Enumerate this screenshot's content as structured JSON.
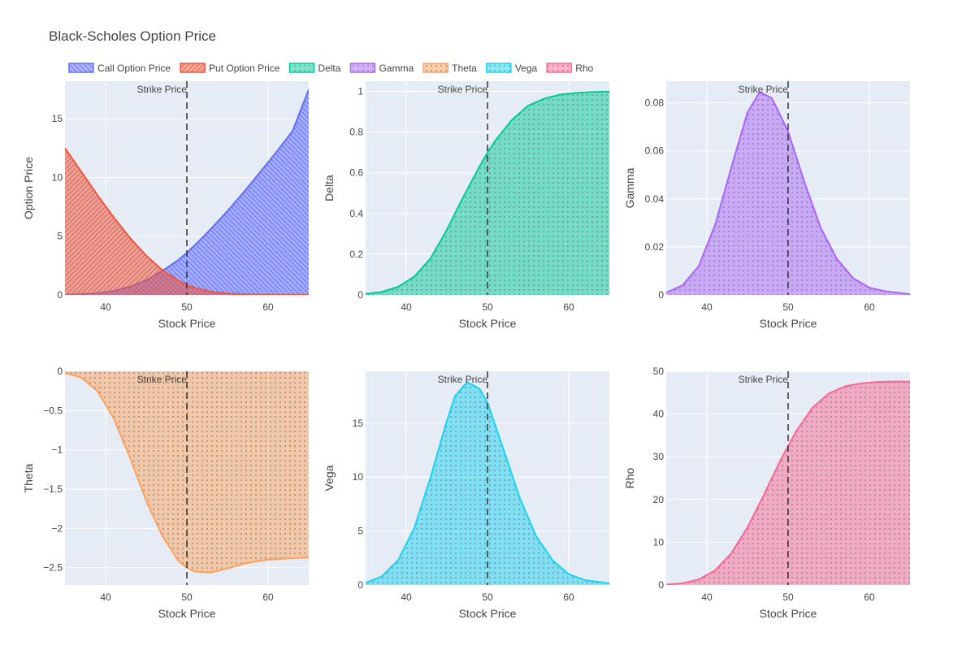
{
  "chart_data": {
    "title": "Black-Scholes Option Price",
    "type": "area",
    "legend_position": "top",
    "annotation_text": "Strike Price",
    "strike": 50,
    "legend": [
      {
        "name": "Call Option Price",
        "color": "#636efa",
        "pattern": "hatch"
      },
      {
        "name": "Put Option Price",
        "color": "#ef553b",
        "pattern": "hatch-reverse"
      },
      {
        "name": "Delta",
        "color": "#00cc96",
        "pattern": "dots"
      },
      {
        "name": "Gamma",
        "color": "#ab63fa",
        "pattern": "dots"
      },
      {
        "name": "Theta",
        "color": "#ffa15a",
        "pattern": "dots"
      },
      {
        "name": "Vega",
        "color": "#19d3f3",
        "pattern": "dots"
      },
      {
        "name": "Rho",
        "color": "#ff6692",
        "pattern": "dots"
      }
    ],
    "panels": [
      {
        "id": "price",
        "xlabel": "Stock Price",
        "ylabel": "Option Price",
        "xlim": [
          35,
          65
        ],
        "ylim": [
          0,
          18.2
        ],
        "xticks": [
          {
            "v": 40,
            "label": "40"
          },
          {
            "v": 50,
            "label": "50"
          },
          {
            "v": 60,
            "label": "60"
          }
        ],
        "yticks": [
          {
            "v": 0,
            "label": "0"
          },
          {
            "v": 5,
            "label": "5"
          },
          {
            "v": 10,
            "label": "10"
          },
          {
            "v": 15,
            "label": "15"
          }
        ],
        "series": [
          {
            "name": "Call Option Price",
            "color": "#636efa",
            "pattern": "hatch",
            "x": [
              35,
              37,
              39,
              41,
              43,
              45,
              47,
              49,
              50,
              51,
              53,
              55,
              57,
              59,
              61,
              63,
              65
            ],
            "y": [
              0.02,
              0.06,
              0.15,
              0.34,
              0.7,
              1.25,
              2.05,
              3.0,
              3.6,
              4.25,
              5.65,
              7.15,
              8.75,
              10.45,
              12.15,
              13.95,
              17.5
            ]
          },
          {
            "name": "Put Option Price",
            "color": "#ef553b",
            "pattern": "hatch-reverse",
            "x": [
              35,
              37,
              39,
              41,
              43,
              45,
              47,
              49,
              50,
              51,
              53,
              55,
              57,
              59,
              61,
              63,
              65
            ],
            "y": [
              12.5,
              10.5,
              8.5,
              6.6,
              4.85,
              3.35,
              2.1,
              1.2,
              0.85,
              0.6,
              0.27,
              0.11,
              0.05,
              0.02,
              0.01,
              0.0,
              0.0
            ]
          }
        ]
      },
      {
        "id": "delta",
        "xlabel": "Stock Price",
        "ylabel": "Delta",
        "xlim": [
          35,
          65
        ],
        "ylim": [
          0,
          1.05
        ],
        "xticks": [
          {
            "v": 40,
            "label": "40"
          },
          {
            "v": 50,
            "label": "50"
          },
          {
            "v": 60,
            "label": "60"
          }
        ],
        "yticks": [
          {
            "v": 0,
            "label": "0"
          },
          {
            "v": 0.2,
            "label": "0.2"
          },
          {
            "v": 0.4,
            "label": "0.4"
          },
          {
            "v": 0.6,
            "label": "0.6"
          },
          {
            "v": 0.8,
            "label": "0.8"
          },
          {
            "v": 1,
            "label": "1"
          }
        ],
        "series": [
          {
            "name": "Delta",
            "color": "#00cc96",
            "pattern": "dots",
            "x": [
              35,
              37,
              39,
              41,
              43,
              45,
              47,
              49,
              50,
              51,
              53,
              55,
              57,
              59,
              61,
              63,
              65
            ],
            "y": [
              0.005,
              0.015,
              0.04,
              0.09,
              0.18,
              0.32,
              0.48,
              0.63,
              0.7,
              0.76,
              0.86,
              0.93,
              0.965,
              0.985,
              0.993,
              0.997,
              0.999
            ]
          }
        ]
      },
      {
        "id": "gamma",
        "xlabel": "Stock Price",
        "ylabel": "Gamma",
        "xlim": [
          35,
          65
        ],
        "ylim": [
          0,
          0.089
        ],
        "xticks": [
          {
            "v": 40,
            "label": "40"
          },
          {
            "v": 50,
            "label": "50"
          },
          {
            "v": 60,
            "label": "60"
          }
        ],
        "yticks": [
          {
            "v": 0,
            "label": "0"
          },
          {
            "v": 0.02,
            "label": "0.02"
          },
          {
            "v": 0.04,
            "label": "0.04"
          },
          {
            "v": 0.06,
            "label": "0.06"
          },
          {
            "v": 0.08,
            "label": "0.08"
          }
        ],
        "series": [
          {
            "name": "Gamma",
            "color": "#ab63fa",
            "pattern": "dots",
            "x": [
              35,
              37,
              39,
              41,
              43,
              45,
              46.5,
              48,
              50,
              52,
              54,
              56,
              58,
              60,
              62,
              65
            ],
            "y": [
              0.001,
              0.004,
              0.012,
              0.029,
              0.053,
              0.076,
              0.0845,
              0.082,
              0.068,
              0.047,
              0.028,
              0.015,
              0.007,
              0.003,
              0.0015,
              0.0003
            ]
          }
        ]
      },
      {
        "id": "theta",
        "xlabel": "Stock Price",
        "ylabel": "Theta",
        "xlim": [
          35,
          65
        ],
        "ylim": [
          -2.72,
          0
        ],
        "xticks": [
          {
            "v": 40,
            "label": "40"
          },
          {
            "v": 50,
            "label": "50"
          },
          {
            "v": 60,
            "label": "60"
          }
        ],
        "yticks": [
          {
            "v": 0,
            "label": "0"
          },
          {
            "v": -0.5,
            "label": "−0.5"
          },
          {
            "v": -1,
            "label": "−1"
          },
          {
            "v": -1.5,
            "label": "−1.5"
          },
          {
            "v": -2,
            "label": "−2"
          },
          {
            "v": -2.5,
            "label": "−2.5"
          }
        ],
        "series": [
          {
            "name": "Theta",
            "color": "#ffa15a",
            "pattern": "dots",
            "x": [
              35,
              37,
              39,
              41,
              43,
              45,
              47,
              49,
              50,
              51,
              53,
              55,
              57,
              59,
              61,
              63,
              65
            ],
            "y": [
              -0.02,
              -0.08,
              -0.25,
              -0.6,
              -1.1,
              -1.65,
              -2.1,
              -2.42,
              -2.5,
              -2.55,
              -2.56,
              -2.51,
              -2.45,
              -2.41,
              -2.39,
              -2.38,
              -2.37
            ]
          }
        ]
      },
      {
        "id": "vega",
        "xlabel": "Stock Price",
        "ylabel": "Vega",
        "xlim": [
          35,
          65
        ],
        "ylim": [
          0,
          19.8
        ],
        "xticks": [
          {
            "v": 40,
            "label": "40"
          },
          {
            "v": 50,
            "label": "50"
          },
          {
            "v": 60,
            "label": "60"
          }
        ],
        "yticks": [
          {
            "v": 0,
            "label": "0"
          },
          {
            "v": 5,
            "label": "5"
          },
          {
            "v": 10,
            "label": "10"
          },
          {
            "v": 15,
            "label": "15"
          }
        ],
        "series": [
          {
            "name": "Vega",
            "color": "#19d3f3",
            "pattern": "dots",
            "x": [
              35,
              37,
              39,
              41,
              43,
              45,
              46,
              47.5,
              49,
              50,
              52,
              54,
              56,
              58,
              60,
              62,
              65
            ],
            "y": [
              0.2,
              0.8,
              2.3,
              5.3,
              10.0,
              15.2,
              17.5,
              18.8,
              18.2,
              16.9,
              12.5,
              8.0,
              4.5,
              2.3,
              1.0,
              0.45,
              0.15
            ]
          }
        ]
      },
      {
        "id": "rho",
        "xlabel": "Stock Price",
        "ylabel": "Rho",
        "xlim": [
          35,
          65
        ],
        "ylim": [
          0,
          50
        ],
        "xticks": [
          {
            "v": 40,
            "label": "40"
          },
          {
            "v": 50,
            "label": "50"
          },
          {
            "v": 60,
            "label": "60"
          }
        ],
        "yticks": [
          {
            "v": 0,
            "label": "0"
          },
          {
            "v": 10,
            "label": "10"
          },
          {
            "v": 20,
            "label": "20"
          },
          {
            "v": 30,
            "label": "30"
          },
          {
            "v": 40,
            "label": "40"
          },
          {
            "v": 50,
            "label": "50"
          }
        ],
        "series": [
          {
            "name": "Rho",
            "color": "#ff6692",
            "pattern": "dots",
            "x": [
              35,
              37,
              39,
              41,
              43,
              45,
              47,
              49,
              50,
              51,
              53,
              55,
              57,
              59,
              61,
              63,
              65
            ],
            "y": [
              0.1,
              0.4,
              1.3,
              3.4,
              7.4,
              13.5,
              21.0,
              29.0,
              32.5,
              36.0,
              41.5,
              44.8,
              46.5,
              47.2,
              47.5,
              47.6,
              47.6
            ]
          }
        ]
      }
    ]
  }
}
